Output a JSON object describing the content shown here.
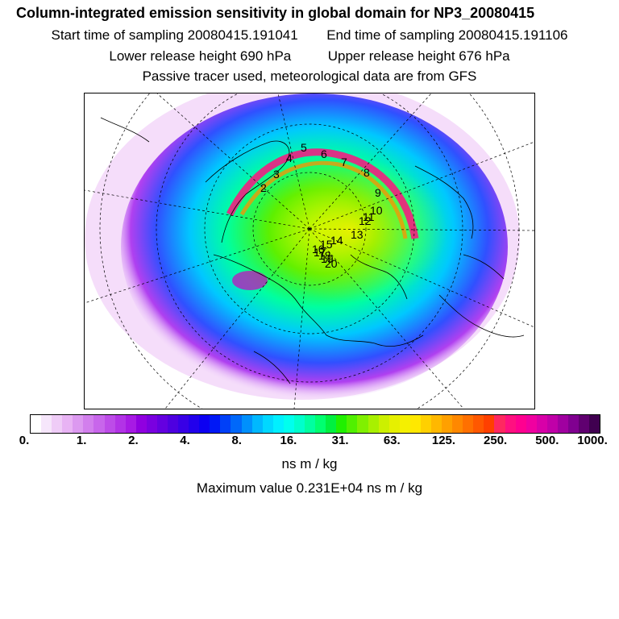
{
  "header": {
    "title": "Column-integrated emission sensitivity in global domain for NP3_20080415",
    "start_time": "Start time of sampling 20080415.191041",
    "end_time": "End time of sampling 20080415.191106",
    "lower_height": "Lower release height  690 hPa",
    "upper_height": "Upper release height  676 hPa",
    "tracer_note": "Passive tracer used, meteorological data are from GFS"
  },
  "map": {
    "projection": "north-polar-stereographic",
    "trajectory_labels": [
      "2",
      "3",
      "4",
      "5",
      "6",
      "7",
      "8",
      "9",
      "10",
      "11",
      "12",
      "13",
      "14",
      "15",
      "16",
      "17",
      "18",
      "19",
      "20"
    ]
  },
  "colorbar": {
    "colors": [
      "#ffffff",
      "#f6e6fb",
      "#efccf7",
      "#e8b3f4",
      "#dc99f0",
      "#d27fed",
      "#c866eb",
      "#bd4ce8",
      "#b233e6",
      "#a71ae4",
      "#9000e0",
      "#7a00e0",
      "#6400e0",
      "#4e00e0",
      "#3800e6",
      "#2200ec",
      "#0c00f2",
      "#0018f6",
      "#0040f8",
      "#0068fa",
      "#0090fc",
      "#00b8fe",
      "#00d8ff",
      "#00f0ff",
      "#00ffee",
      "#00ffcc",
      "#00ffa0",
      "#00ff70",
      "#00f040",
      "#20f000",
      "#50f000",
      "#80f000",
      "#a8f000",
      "#ccf000",
      "#e6f000",
      "#f5f000",
      "#ffe800",
      "#ffd000",
      "#ffb800",
      "#ffa000",
      "#ff8800",
      "#ff7000",
      "#ff5800",
      "#ff4000",
      "#ff2860",
      "#ff1080",
      "#ff0090",
      "#f000a0",
      "#d800a8",
      "#c000a8",
      "#a000a0",
      "#800090",
      "#600070",
      "#400050"
    ],
    "ticks": [
      "0.",
      "1.",
      "2.",
      "4.",
      "8.",
      "16.",
      "31.",
      "63.",
      "125.",
      "250.",
      "500.",
      "1000."
    ],
    "unit_label": "ns m / kg"
  },
  "max_value_label": "Maximum value  0.231E+04 ns m / kg"
}
